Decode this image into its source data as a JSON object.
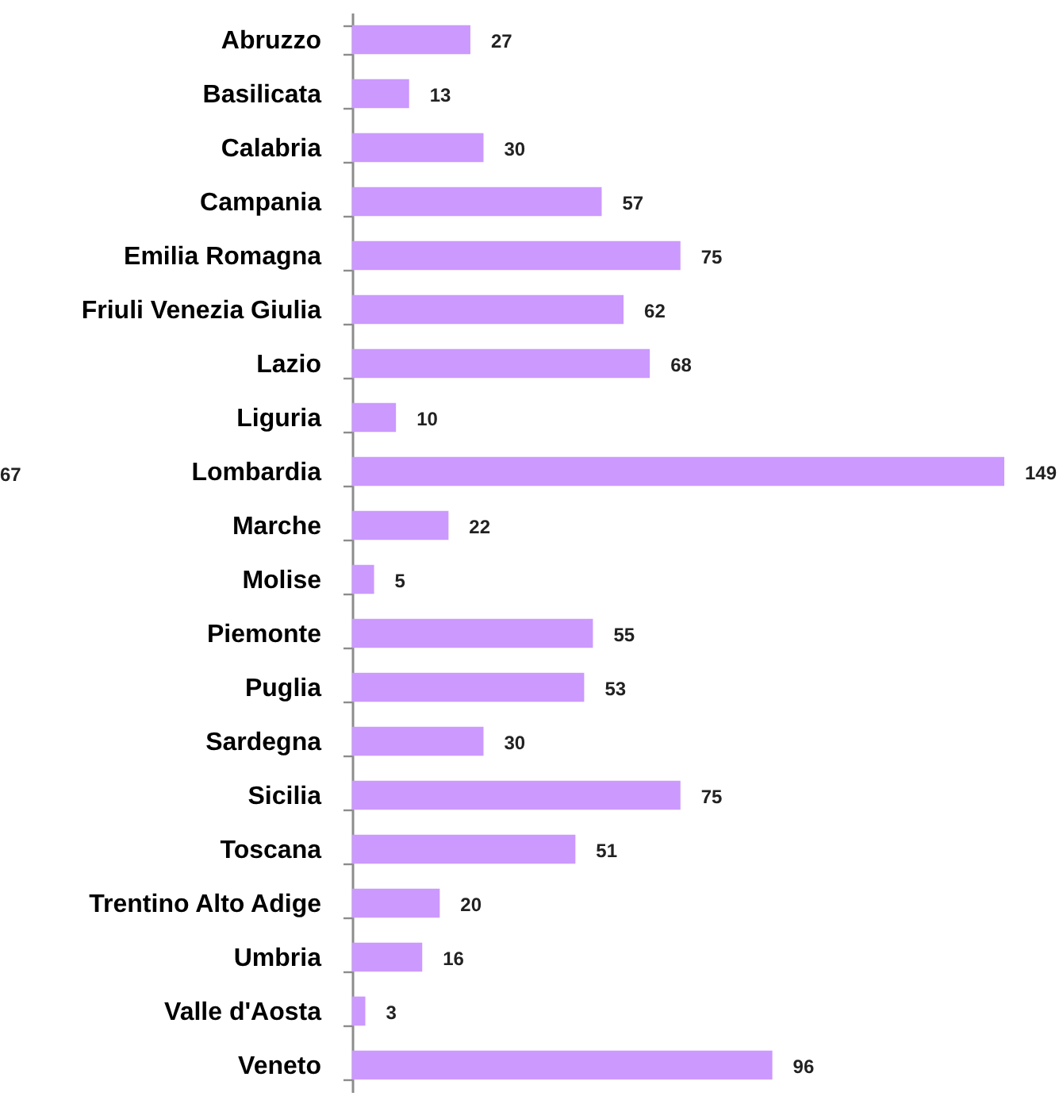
{
  "chart_data": {
    "type": "bar",
    "orientation": "horizontal",
    "categories": [
      "Abruzzo",
      "Basilicata",
      "Calabria",
      "Campania",
      "Emilia Romagna",
      "Friuli Venezia Giulia",
      "Lazio",
      "Liguria",
      "Lombardia",
      "Marche",
      "Molise",
      "Piemonte",
      "Puglia",
      "Sardegna",
      "Sicilia",
      "Toscana",
      "Trentino Alto Adige",
      "Umbria",
      "Valle d'Aosta",
      "Veneto"
    ],
    "values": [
      27,
      13,
      30,
      57,
      75,
      62,
      68,
      10,
      149,
      22,
      5,
      55,
      53,
      30,
      75,
      51,
      20,
      16,
      3,
      96
    ],
    "color": "#cc99ff",
    "data_labels": true,
    "annotations": [
      "67"
    ]
  }
}
